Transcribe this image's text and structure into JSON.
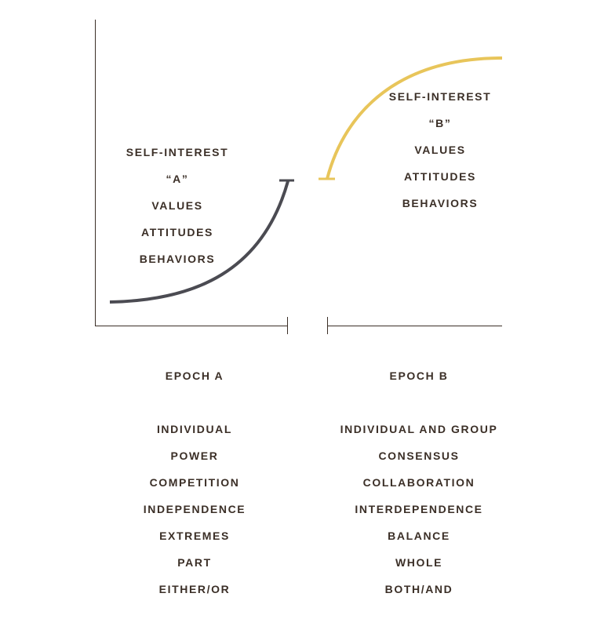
{
  "colors": {
    "epoch_a_curve": "#4b4b52",
    "epoch_b_curve": "#e8c55a",
    "text": "#3b2f27",
    "axis": "#3b2f27"
  },
  "epoch_a": {
    "curve_labels": [
      "SELF-INTEREST",
      "“A”",
      "VALUES",
      "ATTITUDES",
      "BEHAVIORS"
    ],
    "title": "EPOCH A",
    "traits": [
      "INDIVIDUAL",
      "POWER",
      "COMPETITION",
      "INDEPENDENCE",
      "EXTREMES",
      "PART",
      "EITHER/OR"
    ]
  },
  "epoch_b": {
    "curve_labels": [
      "SELF-INTEREST",
      "“B”",
      "VALUES",
      "ATTITUDES",
      "BEHAVIORS"
    ],
    "title": "EPOCH B",
    "traits": [
      "INDIVIDUAL AND GROUP",
      "CONSENSUS",
      "COLLABORATION",
      "INTERDEPENDENCE",
      "BALANCE",
      "WHOLE",
      "BOTH/AND"
    ]
  }
}
